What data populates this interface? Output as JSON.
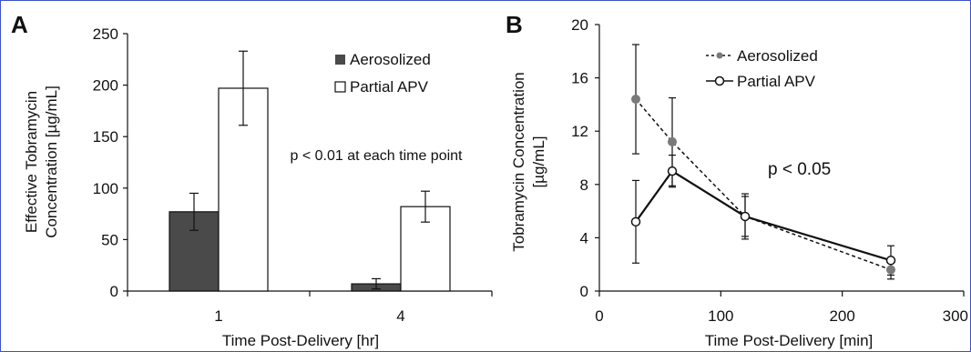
{
  "colors": {
    "aerosolized": "#4a4a4a",
    "partial_apv": "#ffffff",
    "stroke": "#111111",
    "marker_gray": "#7a7a7a"
  },
  "chart_data": [
    {
      "panel": "A",
      "type": "bar",
      "categories": [
        "1",
        "4"
      ],
      "series": [
        {
          "name": "Aerosolized",
          "values": [
            77,
            7
          ],
          "error": [
            18,
            5
          ]
        },
        {
          "name": "Partial APV",
          "values": [
            197,
            82
          ],
          "error": [
            36,
            15
          ]
        }
      ],
      "xlabel": "Time Post-Delivery [hr]",
      "ylabel_lines": [
        "Effective Tobramycin",
        "Concentration [µg/mL]"
      ],
      "ylim": [
        0,
        250
      ],
      "yticks": [
        0,
        50,
        100,
        150,
        200,
        250
      ],
      "annotation": "p < 0.01 at each time point",
      "legend_position": "top-right",
      "grid": false
    },
    {
      "panel": "B",
      "type": "line",
      "series": [
        {
          "name": "Aerosolized",
          "style": "dashed",
          "marker": "filled",
          "x": [
            30,
            60,
            120,
            240
          ],
          "y": [
            14.4,
            11.2,
            5.6,
            1.6
          ],
          "error": [
            4.1,
            3.3,
            1.7,
            0.7
          ]
        },
        {
          "name": "Partial APV",
          "style": "solid",
          "marker": "open",
          "x": [
            30,
            60,
            120,
            240
          ],
          "y": [
            5.2,
            9.0,
            5.6,
            2.3
          ],
          "error": [
            3.1,
            1.2,
            1.5,
            1.1
          ]
        }
      ],
      "xlabel": "Time Post-Delivery [min]",
      "ylabel_lines": [
        "Tobramycin Concentration",
        "[µg/mL]"
      ],
      "xlim": [
        0,
        300
      ],
      "xticks": [
        0,
        100,
        200,
        300
      ],
      "xtick_labels": [
        "0",
        "100",
        "200",
        "300"
      ],
      "ylim": [
        0,
        20
      ],
      "yticks": [
        0,
        4,
        8,
        12,
        16,
        20
      ],
      "annotation": "p < 0.05",
      "legend_position": "top-center",
      "grid": false
    }
  ]
}
